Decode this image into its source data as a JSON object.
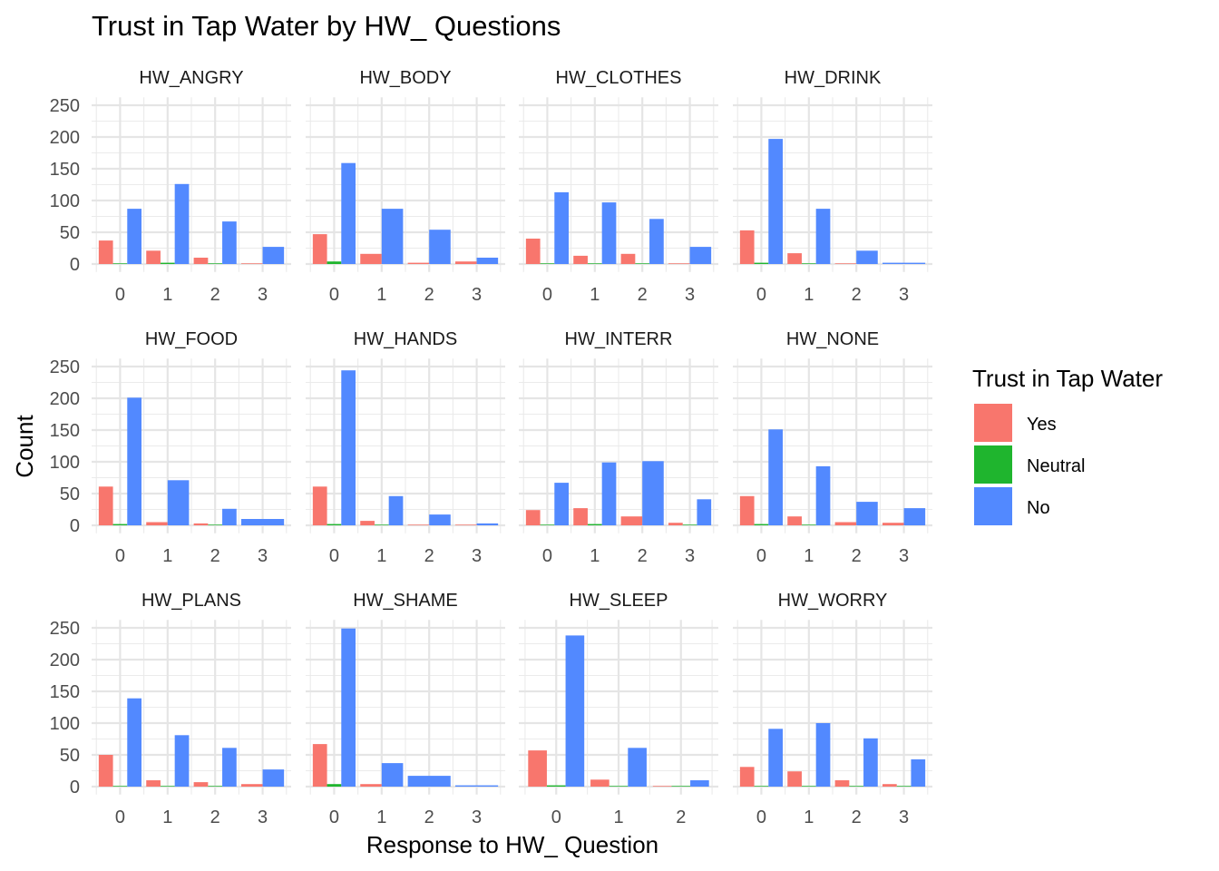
{
  "chart_data": {
    "type": "bar",
    "title": "Trust in Tap Water by HW_ Questions",
    "xlabel": "Response to HW_ Question",
    "ylabel": "Count",
    "ylim": [
      0,
      262
    ],
    "yticks": [
      "0",
      "50",
      "100",
      "150",
      "200",
      "250"
    ],
    "grid": true,
    "legend": {
      "title": "Trust in Tap Water",
      "position": "right",
      "entries": [
        {
          "label": "Yes",
          "color": "#F8766D"
        },
        {
          "label": "Neutral",
          "color": "#1FB52E"
        },
        {
          "label": "No",
          "color": "#5289FF"
        }
      ]
    },
    "series_names": [
      "Yes",
      "Neutral",
      "No"
    ],
    "panels": [
      {
        "name": "HW_ANGRY",
        "categories": [
          "0",
          "1",
          "2",
          "3"
        ],
        "values": {
          "Yes": [
            37,
            21,
            10,
            1
          ],
          "Neutral": [
            1,
            2,
            1,
            null
          ],
          "No": [
            87,
            126,
            67,
            27
          ]
        }
      },
      {
        "name": "HW_BODY",
        "categories": [
          "0",
          "1",
          "2",
          "3"
        ],
        "values": {
          "Yes": [
            47,
            16,
            2,
            4
          ],
          "Neutral": [
            4,
            null,
            null,
            null
          ],
          "No": [
            159,
            87,
            54,
            10
          ]
        }
      },
      {
        "name": "HW_CLOTHES",
        "categories": [
          "0",
          "1",
          "2",
          "3"
        ],
        "values": {
          "Yes": [
            40,
            13,
            16,
            1
          ],
          "Neutral": [
            1,
            1,
            1,
            null
          ],
          "No": [
            113,
            97,
            71,
            27
          ]
        }
      },
      {
        "name": "HW_DRINK",
        "categories": [
          "0",
          "1",
          "2",
          "3"
        ],
        "values": {
          "Yes": [
            53,
            17,
            1,
            null
          ],
          "Neutral": [
            2,
            1,
            null,
            null
          ],
          "No": [
            197,
            87,
            21,
            2
          ]
        }
      },
      {
        "name": "HW_FOOD",
        "categories": [
          "0",
          "1",
          "2",
          "3"
        ],
        "values": {
          "Yes": [
            61,
            5,
            3,
            null
          ],
          "Neutral": [
            2,
            null,
            1,
            null
          ],
          "No": [
            201,
            71,
            26,
            10
          ]
        }
      },
      {
        "name": "HW_HANDS",
        "categories": [
          "0",
          "1",
          "2",
          "3"
        ],
        "values": {
          "Yes": [
            61,
            7,
            1,
            1
          ],
          "Neutral": [
            2,
            1,
            null,
            null
          ],
          "No": [
            244,
            46,
            17,
            3
          ]
        }
      },
      {
        "name": "HW_INTERR",
        "categories": [
          "0",
          "1",
          "2",
          "3"
        ],
        "values": {
          "Yes": [
            24,
            27,
            14,
            4
          ],
          "Neutral": [
            1,
            2,
            null,
            1
          ],
          "No": [
            67,
            99,
            101,
            41
          ]
        }
      },
      {
        "name": "HW_NONE",
        "categories": [
          "0",
          "1",
          "2",
          "3"
        ],
        "values": {
          "Yes": [
            46,
            14,
            5,
            4
          ],
          "Neutral": [
            2,
            1,
            null,
            null
          ],
          "No": [
            151,
            93,
            37,
            27
          ]
        }
      },
      {
        "name": "HW_PLANS",
        "categories": [
          "0",
          "1",
          "2",
          "3"
        ],
        "values": {
          "Yes": [
            50,
            10,
            7,
            4
          ],
          "Neutral": [
            1,
            1,
            1,
            null
          ],
          "No": [
            139,
            81,
            61,
            27
          ]
        }
      },
      {
        "name": "HW_SHAME",
        "categories": [
          "0",
          "1",
          "2",
          "3"
        ],
        "values": {
          "Yes": [
            67,
            4,
            null,
            null
          ],
          "Neutral": [
            4,
            null,
            null,
            null
          ],
          "No": [
            249,
            37,
            17,
            2
          ]
        }
      },
      {
        "name": "HW_SLEEP",
        "categories": [
          "0",
          "1",
          "2"
        ],
        "values": {
          "Yes": [
            57,
            11,
            1
          ],
          "Neutral": [
            2,
            1,
            1
          ],
          "No": [
            238,
            61,
            10
          ]
        }
      },
      {
        "name": "HW_WORRY",
        "categories": [
          "0",
          "1",
          "2",
          "3"
        ],
        "values": {
          "Yes": [
            31,
            24,
            10,
            4
          ],
          "Neutral": [
            1,
            1,
            1,
            1
          ],
          "No": [
            91,
            100,
            76,
            43
          ]
        }
      }
    ]
  }
}
